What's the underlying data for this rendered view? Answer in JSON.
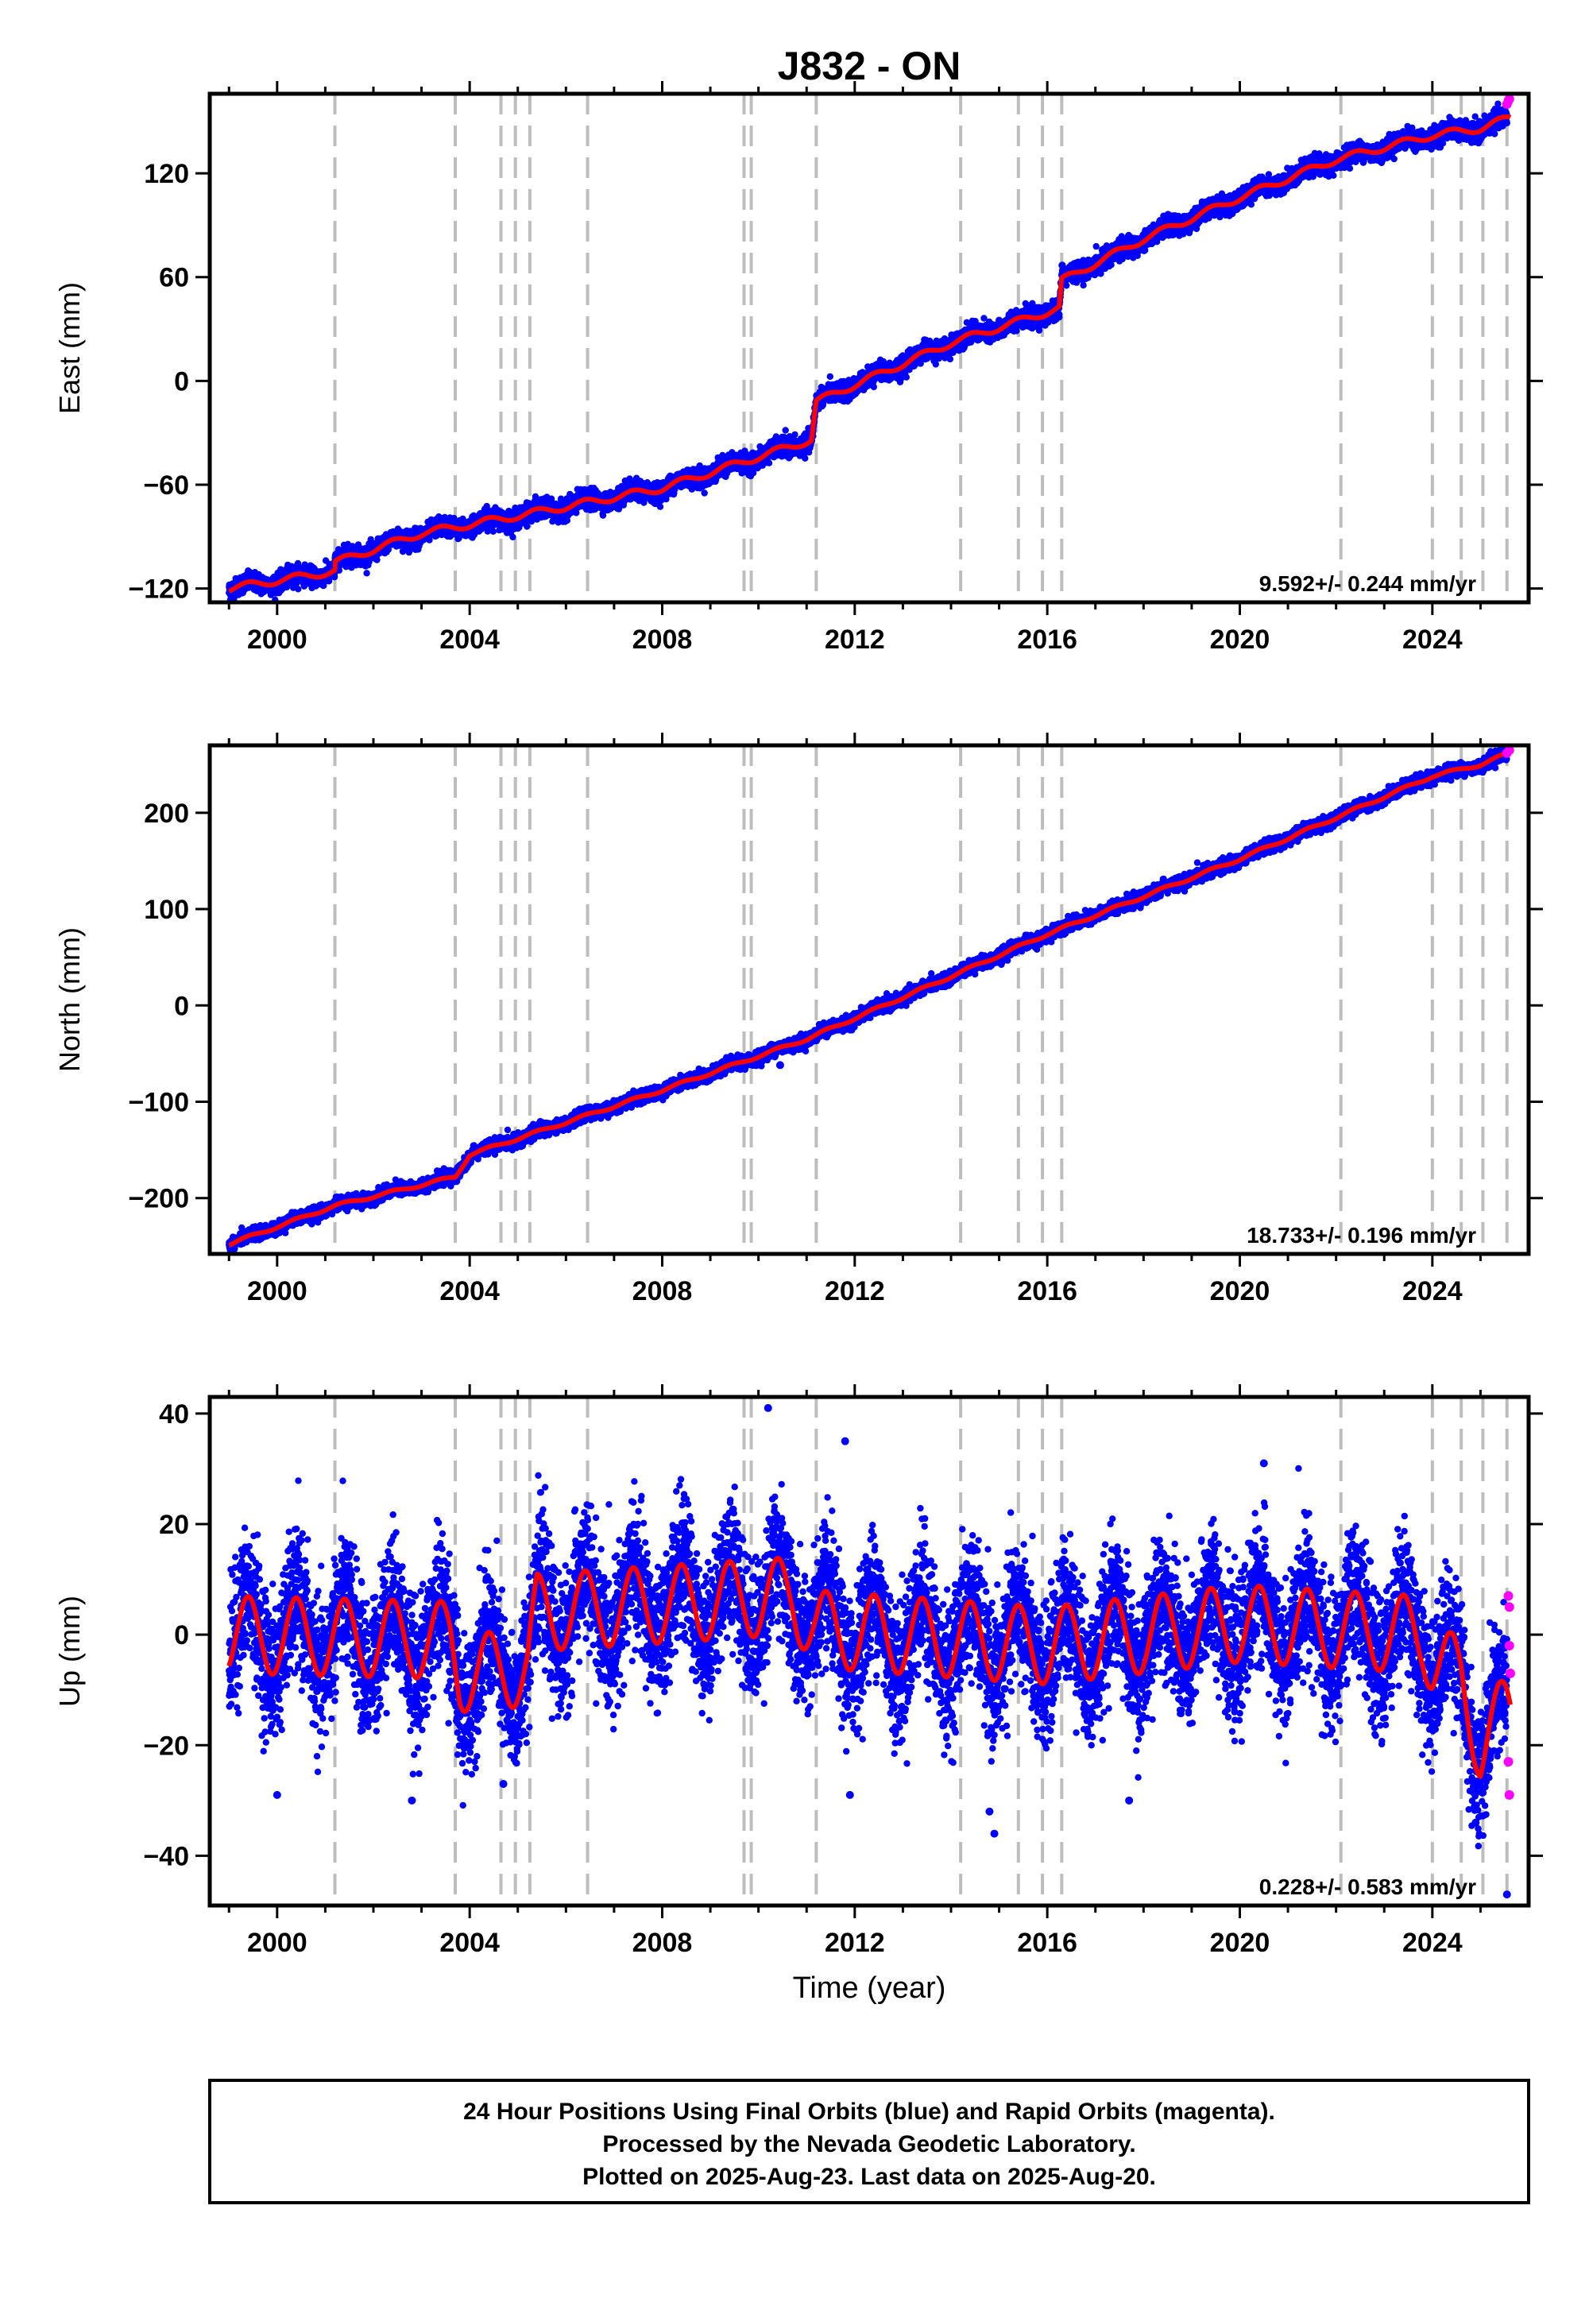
{
  "title": "J832 - ON",
  "chart_data": [
    {
      "type": "scatter",
      "ylabel": "East (mm)",
      "xlim": [
        1998.6,
        2026.0
      ],
      "ylim": [
        -128,
        166
      ],
      "x_ticks": [
        "2000",
        "2004",
        "2008",
        "2012",
        "2016",
        "2020",
        "2024"
      ],
      "y_ticks": [
        "-120",
        "-60",
        "0",
        "60",
        "120"
      ],
      "rate_label": "9.592+/- 0.244 mm/yr",
      "noise_mm": 2.6,
      "model_points": [
        [
          1999.0,
          -120
        ],
        [
          2001.2,
          -110
        ],
        [
          2001.2,
          -105
        ],
        [
          2003.0,
          -88
        ],
        [
          2005.0,
          -78
        ],
        [
          2008.0,
          -62
        ],
        [
          2011.1,
          -34
        ],
        [
          2011.2,
          -12
        ],
        [
          2014.0,
          22
        ],
        [
          2016.25,
          42
        ],
        [
          2016.3,
          58
        ],
        [
          2018.0,
          82
        ],
        [
          2020.0,
          106
        ],
        [
          2022.0,
          128
        ],
        [
          2024.0,
          142
        ],
        [
          2025.0,
          146
        ],
        [
          2025.6,
          152
        ]
      ],
      "seasonal_amp": 2,
      "rapid_points": [
        [
          2025.55,
          160
        ],
        [
          2025.58,
          162
        ],
        [
          2025.6,
          163
        ]
      ],
      "outliers": []
    },
    {
      "type": "scatter",
      "ylabel": "North (mm)",
      "xlim": [
        1998.6,
        2026.0
      ],
      "ylim": [
        -258,
        270
      ],
      "x_ticks": [
        "2000",
        "2004",
        "2008",
        "2012",
        "2016",
        "2020",
        "2024"
      ],
      "y_ticks": [
        "-200",
        "-100",
        "0",
        "100",
        "200"
      ],
      "rate_label": "18.733+/- 0.196 mm/yr",
      "noise_mm": 3.2,
      "model_points": [
        [
          1999.0,
          -248
        ],
        [
          2001.2,
          -208
        ],
        [
          2003.7,
          -178
        ],
        [
          2004.0,
          -155
        ],
        [
          2008.0,
          -88
        ],
        [
          2011.0,
          -35
        ],
        [
          2014.0,
          30
        ],
        [
          2016.0,
          74
        ],
        [
          2020.0,
          152
        ],
        [
          2024.0,
          238
        ],
        [
          2025.0,
          250
        ],
        [
          2025.6,
          262
        ]
      ],
      "seasonal_amp": 1.5,
      "rapid_points": [
        [
          2025.55,
          262
        ],
        [
          2025.6,
          265
        ]
      ],
      "outliers": [
        [
          2010.45,
          -62
        ]
      ]
    },
    {
      "type": "scatter",
      "ylabel": "Up (mm)",
      "xlabel": "Time (year)",
      "xlim": [
        1998.6,
        2026.0
      ],
      "ylim": [
        -49,
        43
      ],
      "x_ticks": [
        "2000",
        "2004",
        "2008",
        "2012",
        "2016",
        "2020",
        "2024"
      ],
      "y_ticks": [
        "-40",
        "-20",
        "0",
        "20",
        "40"
      ],
      "rate_label": "0.228+/- 0.583 mm/yr",
      "noise_mm": 6,
      "model_points": [
        [
          1999.0,
          0
        ],
        [
          2003.6,
          -1
        ],
        [
          2003.8,
          -7
        ],
        [
          2005.2,
          -6
        ],
        [
          2005.4,
          4
        ],
        [
          2010.7,
          7
        ],
        [
          2011.2,
          1
        ],
        [
          2016.0,
          -2
        ],
        [
          2020.0,
          2
        ],
        [
          2023.8,
          0
        ],
        [
          2024.0,
          -4
        ],
        [
          2024.6,
          -8
        ],
        [
          2025.0,
          -20
        ],
        [
          2025.55,
          -14
        ]
      ],
      "seasonal_amp": 7,
      "rapid_points": [
        [
          2025.58,
          7
        ],
        [
          2025.6,
          5
        ],
        [
          2025.6,
          -2
        ],
        [
          2025.62,
          -7
        ],
        [
          2025.58,
          -23
        ],
        [
          2025.6,
          -29
        ]
      ],
      "outliers": [
        [
          2010.2,
          41
        ],
        [
          2011.8,
          35
        ],
        [
          2014.8,
          -32
        ],
        [
          2014.9,
          -36
        ],
        [
          2017.7,
          -30
        ],
        [
          2000.0,
          -29
        ],
        [
          2002.8,
          -30
        ],
        [
          2004.7,
          -27
        ],
        [
          2011.9,
          -29
        ],
        [
          2020.5,
          31
        ],
        [
          2024.9,
          -34
        ],
        [
          2025.55,
          -47
        ]
      ]
    }
  ],
  "event_lines": [
    2001.2,
    2003.7,
    2004.65,
    2004.95,
    2005.25,
    2006.45,
    2009.7,
    2009.85,
    2011.2,
    2014.2,
    2015.4,
    2015.9,
    2016.3,
    2022.1,
    2024.0,
    2024.6,
    2025.05,
    2025.55
  ],
  "footer": [
    "24 Hour Positions Using Final Orbits (blue) and Rapid Orbits (magenta).",
    "Processed by the Nevada Geodetic Laboratory.",
    "Plotted on 2025-Aug-23. Last data on 2025-Aug-20."
  ],
  "colors": {
    "final_orbit": "#0000ff",
    "rapid_orbit": "#ff00ff",
    "model": "#ff0000",
    "event_line": "#bdbdbd",
    "frame": "#000000"
  }
}
